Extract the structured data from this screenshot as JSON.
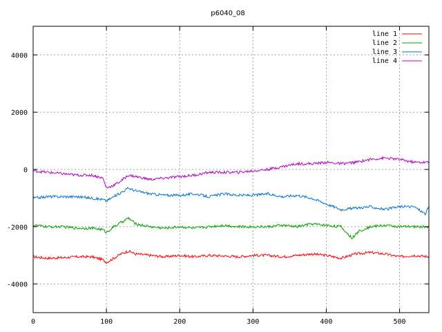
{
  "chart_data": {
    "type": "line",
    "title": "p6040_08",
    "xlabel": "",
    "ylabel": "",
    "xlim": [
      0,
      540
    ],
    "ylim": [
      -5000,
      5000
    ],
    "xticks": [
      0,
      100,
      200,
      300,
      400,
      500
    ],
    "yticks": [
      -4000,
      -2000,
      0,
      2000,
      4000
    ],
    "grid": true,
    "legend_position": "top-right",
    "series": [
      {
        "name": "line 1",
        "color": "#ff0000",
        "points": [
          [
            0,
            -3050
          ],
          [
            20,
            -3100
          ],
          [
            40,
            -3080
          ],
          [
            60,
            -3050
          ],
          [
            80,
            -3050
          ],
          [
            95,
            -3150
          ],
          [
            100,
            -3250
          ],
          [
            110,
            -3100
          ],
          [
            120,
            -2950
          ],
          [
            130,
            -2850
          ],
          [
            140,
            -2950
          ],
          [
            160,
            -3000
          ],
          [
            180,
            -3050
          ],
          [
            200,
            -3000
          ],
          [
            220,
            -3050
          ],
          [
            240,
            -3000
          ],
          [
            260,
            -3020
          ],
          [
            280,
            -3050
          ],
          [
            300,
            -3000
          ],
          [
            320,
            -3000
          ],
          [
            340,
            -3050
          ],
          [
            360,
            -3000
          ],
          [
            380,
            -2950
          ],
          [
            400,
            -3000
          ],
          [
            420,
            -3100
          ],
          [
            440,
            -2950
          ],
          [
            460,
            -2900
          ],
          [
            480,
            -2950
          ],
          [
            500,
            -3050
          ],
          [
            520,
            -3000
          ],
          [
            540,
            -3050
          ]
        ]
      },
      {
        "name": "line 2",
        "color": "#00a000",
        "points": [
          [
            0,
            -1950
          ],
          [
            20,
            -2000
          ],
          [
            40,
            -2000
          ],
          [
            60,
            -2050
          ],
          [
            80,
            -2050
          ],
          [
            95,
            -2100
          ],
          [
            100,
            -2200
          ],
          [
            110,
            -2000
          ],
          [
            120,
            -1850
          ],
          [
            130,
            -1700
          ],
          [
            140,
            -1900
          ],
          [
            160,
            -2000
          ],
          [
            180,
            -2050
          ],
          [
            200,
            -2000
          ],
          [
            220,
            -2050
          ],
          [
            240,
            -2000
          ],
          [
            260,
            -1950
          ],
          [
            280,
            -2000
          ],
          [
            300,
            -2000
          ],
          [
            320,
            -2000
          ],
          [
            340,
            -1950
          ],
          [
            360,
            -2000
          ],
          [
            380,
            -1900
          ],
          [
            400,
            -1950
          ],
          [
            420,
            -2000
          ],
          [
            435,
            -2400
          ],
          [
            445,
            -2150
          ],
          [
            460,
            -2000
          ],
          [
            480,
            -1950
          ],
          [
            500,
            -2000
          ],
          [
            520,
            -2000
          ],
          [
            540,
            -2000
          ]
        ]
      },
      {
        "name": "line 3",
        "color": "#0070d0",
        "points": [
          [
            0,
            -1000
          ],
          [
            20,
            -950
          ],
          [
            40,
            -950
          ],
          [
            60,
            -950
          ],
          [
            80,
            -1000
          ],
          [
            95,
            -1050
          ],
          [
            100,
            -1100
          ],
          [
            110,
            -950
          ],
          [
            120,
            -800
          ],
          [
            130,
            -650
          ],
          [
            140,
            -750
          ],
          [
            160,
            -850
          ],
          [
            180,
            -900
          ],
          [
            200,
            -900
          ],
          [
            220,
            -850
          ],
          [
            240,
            -950
          ],
          [
            260,
            -850
          ],
          [
            280,
            -900
          ],
          [
            300,
            -900
          ],
          [
            320,
            -850
          ],
          [
            340,
            -950
          ],
          [
            360,
            -900
          ],
          [
            380,
            -1000
          ],
          [
            400,
            -1200
          ],
          [
            420,
            -1400
          ],
          [
            440,
            -1350
          ],
          [
            460,
            -1300
          ],
          [
            480,
            -1400
          ],
          [
            500,
            -1300
          ],
          [
            520,
            -1300
          ],
          [
            535,
            -1550
          ],
          [
            540,
            -1300
          ]
        ]
      },
      {
        "name": "line 4",
        "color": "#b000c0",
        "points": [
          [
            0,
            -50
          ],
          [
            20,
            -100
          ],
          [
            40,
            -150
          ],
          [
            60,
            -200
          ],
          [
            80,
            -200
          ],
          [
            95,
            -300
          ],
          [
            100,
            -650
          ],
          [
            110,
            -550
          ],
          [
            120,
            -400
          ],
          [
            130,
            -200
          ],
          [
            140,
            -250
          ],
          [
            160,
            -350
          ],
          [
            180,
            -300
          ],
          [
            200,
            -250
          ],
          [
            220,
            -200
          ],
          [
            240,
            -100
          ],
          [
            260,
            -100
          ],
          [
            280,
            -100
          ],
          [
            300,
            -50
          ],
          [
            320,
            0
          ],
          [
            340,
            100
          ],
          [
            360,
            200
          ],
          [
            380,
            200
          ],
          [
            400,
            250
          ],
          [
            420,
            200
          ],
          [
            440,
            250
          ],
          [
            460,
            350
          ],
          [
            480,
            400
          ],
          [
            500,
            350
          ],
          [
            520,
            250
          ],
          [
            540,
            250
          ]
        ]
      }
    ]
  }
}
